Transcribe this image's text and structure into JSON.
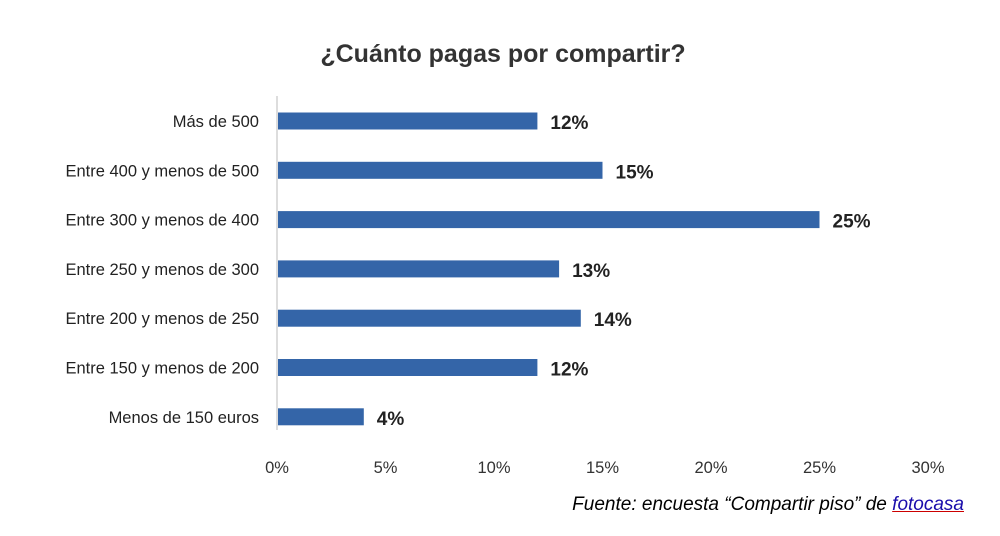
{
  "chart_data": {
    "type": "bar",
    "orientation": "horizontal",
    "title": "¿Cuánto pagas por compartir?",
    "categories": [
      "Más de 500",
      "Entre 400 y menos de 500",
      "Entre 300 y menos de 400",
      "Entre 250 y menos de 300",
      "Entre 200 y menos de 250",
      "Entre 150 y menos de 200",
      "Menos de 150 euros"
    ],
    "values": [
      12,
      15,
      25,
      13,
      14,
      12,
      4
    ],
    "data_labels": [
      "12%",
      "15%",
      "25%",
      "13%",
      "14%",
      "12%",
      "4%"
    ],
    "xlim": [
      0,
      30
    ],
    "x_ticks": [
      0,
      5,
      10,
      15,
      20,
      25,
      30
    ],
    "x_tick_labels": [
      "0%",
      "5%",
      "10%",
      "15%",
      "20%",
      "25%",
      "30%"
    ],
    "grid": false,
    "bar_color": "#3465a8"
  },
  "source": {
    "prefix": "Fuente: encuesta “Compartir piso” de ",
    "link": "fotocasa"
  }
}
